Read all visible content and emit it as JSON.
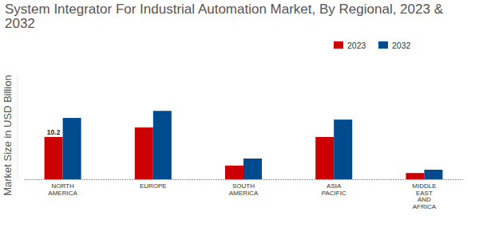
{
  "chart_data": {
    "type": "bar",
    "title": "System Integrator For Industrial Automation Market, By Regional, 2023 & 2032",
    "y_label": "Market Size in USD Billion",
    "categories": [
      "NORTH AMERICA",
      "EUROPE",
      "SOUTH AMERICA",
      "ASIA PACIFIC",
      "MIDDLE EAST AND AFRICA"
    ],
    "series": [
      {
        "name": "2023",
        "color": "#cc0000",
        "values": [
          10.2,
          12.5,
          3.3,
          10.2,
          1.5
        ],
        "value_labels": [
          "10.2",
          null,
          null,
          null,
          null
        ]
      },
      {
        "name": "2032",
        "color": "#004b8d",
        "values": [
          14.8,
          16.5,
          5.0,
          14.4,
          2.3
        ]
      }
    ],
    "ylim": [
      0,
      25
    ],
    "grid": false,
    "legend": "top-right",
    "tick_labels": "x"
  }
}
